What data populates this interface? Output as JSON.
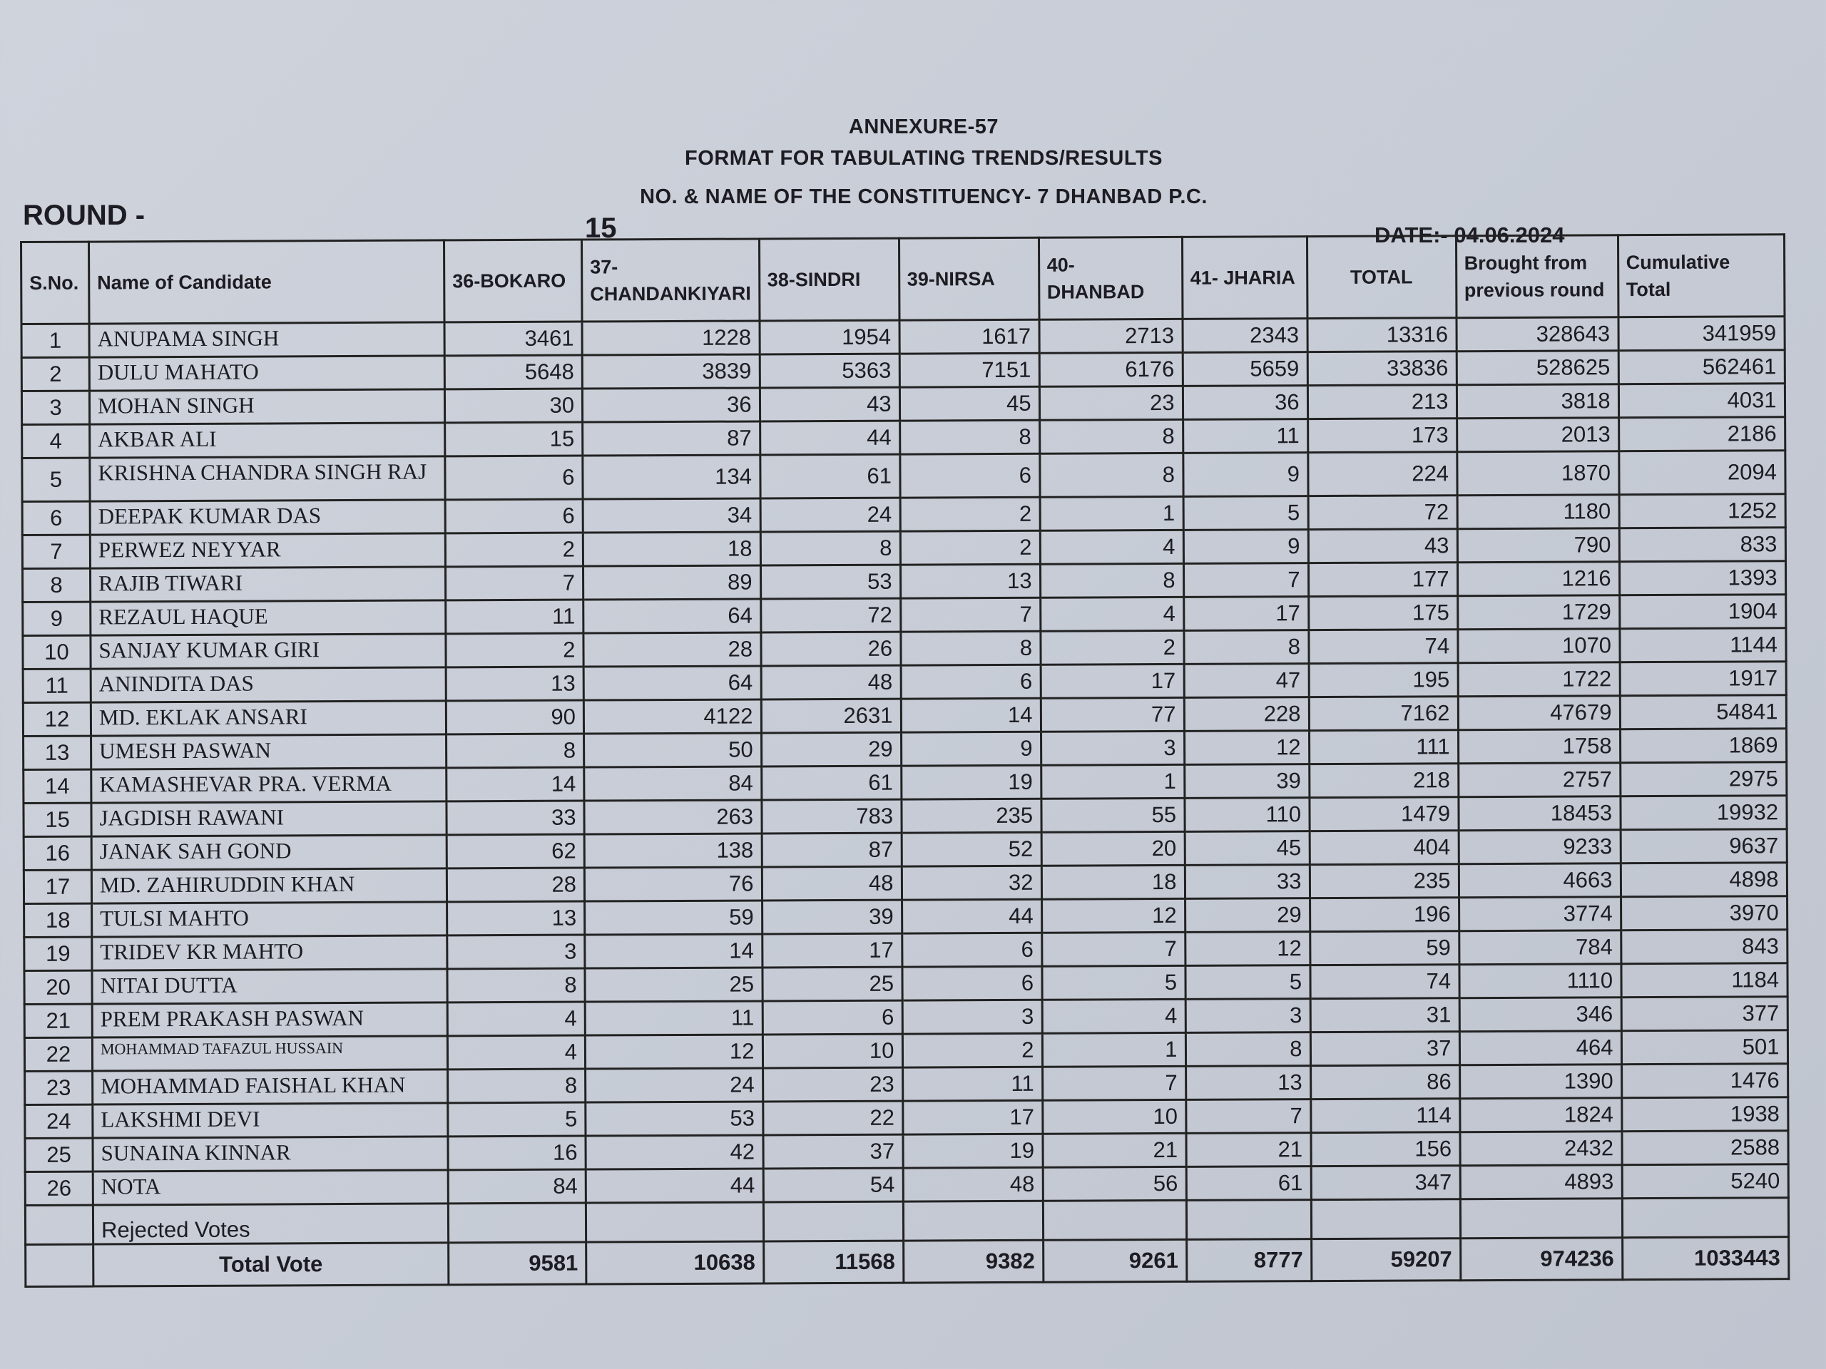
{
  "header": {
    "annexure": "ANNEXURE-57",
    "format": "FORMAT FOR TABULATING TRENDS/RESULTS",
    "constituency": "NO. & NAME OF THE CONSTITUENCY- 7 DHANBAD P.C.",
    "round_label": "ROUND -",
    "round_number": "15",
    "date": "DATE:- 04.06.2024"
  },
  "columns": [
    "S.No.",
    "Name of Candidate",
    "36-BOKARO",
    "37-CHANDANKIYARI",
    "38-SINDRI",
    "39-NIRSA",
    "40- DHANBAD",
    "41- JHARIA",
    "TOTAL",
    "Brought from previous round",
    "Cumulative Total"
  ],
  "rows": [
    [
      "1",
      "ANUPAMA SINGH",
      "3461",
      "1228",
      "1954",
      "1617",
      "2713",
      "2343",
      "13316",
      "328643",
      "341959"
    ],
    [
      "2",
      "DULU MAHATO",
      "5648",
      "3839",
      "5363",
      "7151",
      "6176",
      "5659",
      "33836",
      "528625",
      "562461"
    ],
    [
      "3",
      "MOHAN SINGH",
      "30",
      "36",
      "43",
      "45",
      "23",
      "36",
      "213",
      "3818",
      "4031"
    ],
    [
      "4",
      "AKBAR ALI",
      "15",
      "87",
      "44",
      "8",
      "8",
      "11",
      "173",
      "2013",
      "2186"
    ],
    [
      "5",
      "KRISHNA CHANDRA SINGH RAJ",
      "6",
      "134",
      "61",
      "6",
      "8",
      "9",
      "224",
      "1870",
      "2094"
    ],
    [
      "6",
      "DEEPAK KUMAR DAS",
      "6",
      "34",
      "24",
      "2",
      "1",
      "5",
      "72",
      "1180",
      "1252"
    ],
    [
      "7",
      "PERWEZ NEYYAR",
      "2",
      "18",
      "8",
      "2",
      "4",
      "9",
      "43",
      "790",
      "833"
    ],
    [
      "8",
      "RAJIB TIWARI",
      "7",
      "89",
      "53",
      "13",
      "8",
      "7",
      "177",
      "1216",
      "1393"
    ],
    [
      "9",
      "REZAUL HAQUE",
      "11",
      "64",
      "72",
      "7",
      "4",
      "17",
      "175",
      "1729",
      "1904"
    ],
    [
      "10",
      "SANJAY KUMAR GIRI",
      "2",
      "28",
      "26",
      "8",
      "2",
      "8",
      "74",
      "1070",
      "1144"
    ],
    [
      "11",
      "ANINDITA DAS",
      "13",
      "64",
      "48",
      "6",
      "17",
      "47",
      "195",
      "1722",
      "1917"
    ],
    [
      "12",
      "MD. EKLAK ANSARI",
      "90",
      "4122",
      "2631",
      "14",
      "77",
      "228",
      "7162",
      "47679",
      "54841"
    ],
    [
      "13",
      "UMESH PASWAN",
      "8",
      "50",
      "29",
      "9",
      "3",
      "12",
      "111",
      "1758",
      "1869"
    ],
    [
      "14",
      "KAMASHEVAR PRA. VERMA",
      "14",
      "84",
      "61",
      "19",
      "1",
      "39",
      "218",
      "2757",
      "2975"
    ],
    [
      "15",
      "JAGDISH RAWANI",
      "33",
      "263",
      "783",
      "235",
      "55",
      "110",
      "1479",
      "18453",
      "19932"
    ],
    [
      "16",
      "JANAK SAH GOND",
      "62",
      "138",
      "87",
      "52",
      "20",
      "45",
      "404",
      "9233",
      "9637"
    ],
    [
      "17",
      "MD. ZAHIRUDDIN KHAN",
      "28",
      "76",
      "48",
      "32",
      "18",
      "33",
      "235",
      "4663",
      "4898"
    ],
    [
      "18",
      "TULSI MAHTO",
      "13",
      "59",
      "39",
      "44",
      "12",
      "29",
      "196",
      "3774",
      "3970"
    ],
    [
      "19",
      "TRIDEV KR MAHTO",
      "3",
      "14",
      "17",
      "6",
      "7",
      "12",
      "59",
      "784",
      "843"
    ],
    [
      "20",
      "NITAI DUTTA",
      "8",
      "25",
      "25",
      "6",
      "5",
      "5",
      "74",
      "1110",
      "1184"
    ],
    [
      "21",
      "PREM PRAKASH PASWAN",
      "4",
      "11",
      "6",
      "3",
      "4",
      "3",
      "31",
      "346",
      "377"
    ],
    [
      "22",
      "MOHAMMAD TAFAZUL HUSSAIN",
      "4",
      "12",
      "10",
      "2",
      "1",
      "8",
      "37",
      "464",
      "501"
    ],
    [
      "23",
      "MOHAMMAD FAISHAL KHAN",
      "8",
      "24",
      "23",
      "11",
      "7",
      "13",
      "86",
      "1390",
      "1476"
    ],
    [
      "24",
      "LAKSHMI DEVI",
      "5",
      "53",
      "22",
      "17",
      "10",
      "7",
      "114",
      "1824",
      "1938"
    ],
    [
      "25",
      "SUNAINA KINNAR",
      "16",
      "42",
      "37",
      "19",
      "21",
      "21",
      "156",
      "2432",
      "2588"
    ],
    [
      "26",
      "NOTA",
      "84",
      "44",
      "54",
      "48",
      "56",
      "61",
      "347",
      "4893",
      "5240"
    ]
  ],
  "rejected": {
    "label": "Rejected Votes",
    "values": [
      "",
      "",
      "",
      "",
      "",
      "",
      "",
      "",
      ""
    ]
  },
  "total": {
    "label": "Total Vote",
    "values": [
      "9581",
      "10638",
      "11568",
      "9382",
      "9261",
      "8777",
      "59207",
      "974236",
      "1033443"
    ]
  }
}
